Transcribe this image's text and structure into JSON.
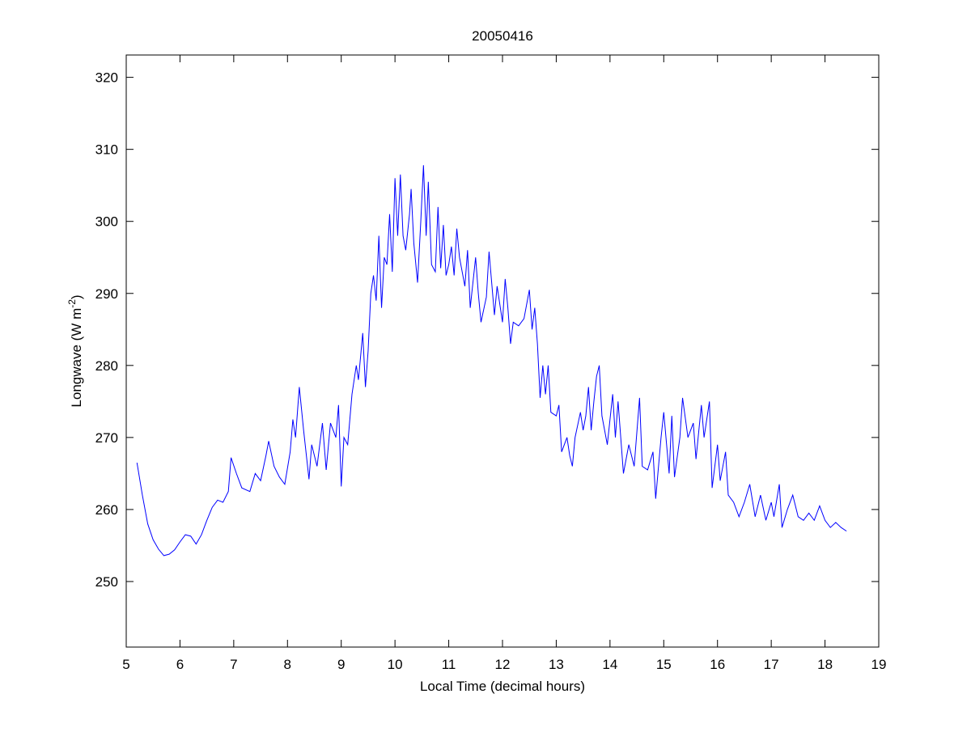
{
  "chart_data": {
    "type": "line",
    "title": "20050416",
    "xlabel": "Local Time (decimal hours)",
    "ylabel": {
      "main": "Longwave (W m",
      "superscript": "-2",
      "close": ")"
    },
    "xlim": [
      5,
      19
    ],
    "xticks": [
      5,
      6,
      7,
      8,
      9,
      10,
      11,
      12,
      13,
      14,
      15,
      16,
      17,
      18,
      19
    ],
    "ylim": [
      240.9,
      323.1
    ],
    "yticks": [
      250,
      260,
      270,
      280,
      290,
      300,
      310,
      320
    ],
    "grid": false,
    "series": [
      {
        "color": "#0000ff",
        "x": [
          5.2,
          5.3,
          5.4,
          5.5,
          5.6,
          5.7,
          5.8,
          5.9,
          6.0,
          6.1,
          6.2,
          6.3,
          6.4,
          6.5,
          6.6,
          6.7,
          6.8,
          6.9,
          6.95,
          7.05,
          7.15,
          7.3,
          7.4,
          7.5,
          7.6,
          7.65,
          7.75,
          7.85,
          7.95,
          8.05,
          8.1,
          8.15,
          8.22,
          8.3,
          8.4,
          8.45,
          8.55,
          8.65,
          8.72,
          8.8,
          8.9,
          8.95,
          9.0,
          9.05,
          9.12,
          9.2,
          9.28,
          9.32,
          9.4,
          9.45,
          9.5,
          9.55,
          9.6,
          9.65,
          9.7,
          9.75,
          9.8,
          9.85,
          9.9,
          9.95,
          10.0,
          10.05,
          10.1,
          10.15,
          10.2,
          10.27,
          10.3,
          10.35,
          10.42,
          10.48,
          10.53,
          10.58,
          10.62,
          10.68,
          10.75,
          10.8,
          10.85,
          10.9,
          10.95,
          11.0,
          11.05,
          11.1,
          11.15,
          11.2,
          11.3,
          11.35,
          11.4,
          11.5,
          11.55,
          11.6,
          11.7,
          11.75,
          11.85,
          11.9,
          12.0,
          12.05,
          12.1,
          12.15,
          12.2,
          12.3,
          12.4,
          12.5,
          12.55,
          12.6,
          12.65,
          12.7,
          12.75,
          12.8,
          12.85,
          12.9,
          13.0,
          13.05,
          13.1,
          13.2,
          13.25,
          13.3,
          13.35,
          13.45,
          13.5,
          13.55,
          13.6,
          13.65,
          13.7,
          13.75,
          13.8,
          13.85,
          13.95,
          14.05,
          14.1,
          14.15,
          14.25,
          14.35,
          14.45,
          14.55,
          14.6,
          14.7,
          14.8,
          14.85,
          14.95,
          15.0,
          15.1,
          15.15,
          15.2,
          15.3,
          15.35,
          15.45,
          15.55,
          15.6,
          15.7,
          15.75,
          15.85,
          15.9,
          16.0,
          16.05,
          16.15,
          16.2,
          16.3,
          16.4,
          16.5,
          16.6,
          16.7,
          16.8,
          16.9,
          17.0,
          17.05,
          17.15,
          17.2,
          17.3,
          17.4,
          17.5,
          17.6,
          17.7,
          17.8,
          17.9,
          18.0,
          18.1,
          18.2,
          18.3,
          18.4
        ],
        "values": [
          266.5,
          262,
          258,
          255.8,
          254.5,
          253.6,
          253.8,
          254.4,
          255.5,
          256.5,
          256.3,
          255.2,
          256.5,
          258.5,
          260.3,
          261.3,
          261,
          262.5,
          267.2,
          265,
          263,
          262.5,
          265,
          264,
          267.5,
          269.5,
          266,
          264.5,
          263.5,
          268,
          272.5,
          270,
          277,
          271,
          264.2,
          269,
          266,
          272,
          265.5,
          272,
          270,
          274.5,
          263.2,
          270,
          269,
          276,
          280,
          278,
          284.5,
          277,
          282,
          290,
          292.5,
          289,
          298,
          288,
          295,
          294,
          301,
          293,
          306,
          298,
          306.5,
          298,
          296,
          301,
          304.5,
          297,
          291.5,
          300,
          307.8,
          298,
          305.5,
          294,
          293,
          302,
          293.5,
          299.5,
          292.5,
          294,
          296.5,
          292.5,
          299,
          295,
          291,
          296,
          288,
          295,
          290,
          286,
          289.5,
          295.8,
          287,
          291,
          286,
          292,
          288,
          283,
          286,
          285.5,
          286.5,
          290.5,
          285,
          288,
          283,
          275.5,
          280,
          276,
          280,
          273.5,
          273,
          274.5,
          268,
          270,
          267.5,
          266,
          270,
          273.5,
          271,
          273,
          277,
          271,
          275,
          278.5,
          280,
          273,
          269,
          276,
          270,
          275,
          265,
          269,
          266,
          275.5,
          266,
          265.5,
          268,
          261.5,
          270,
          273.5,
          265,
          273,
          264.5,
          270,
          275.5,
          270,
          272,
          267,
          274.5,
          270,
          275,
          263,
          269,
          264,
          268,
          262,
          261,
          259,
          261,
          263.5,
          259,
          262,
          258.5,
          261,
          259,
          263.5,
          257.5,
          260,
          262,
          259,
          258.5,
          259.5,
          258.5,
          260.5,
          258.5,
          257.5,
          258.2,
          257.5,
          257
        ]
      }
    ]
  }
}
